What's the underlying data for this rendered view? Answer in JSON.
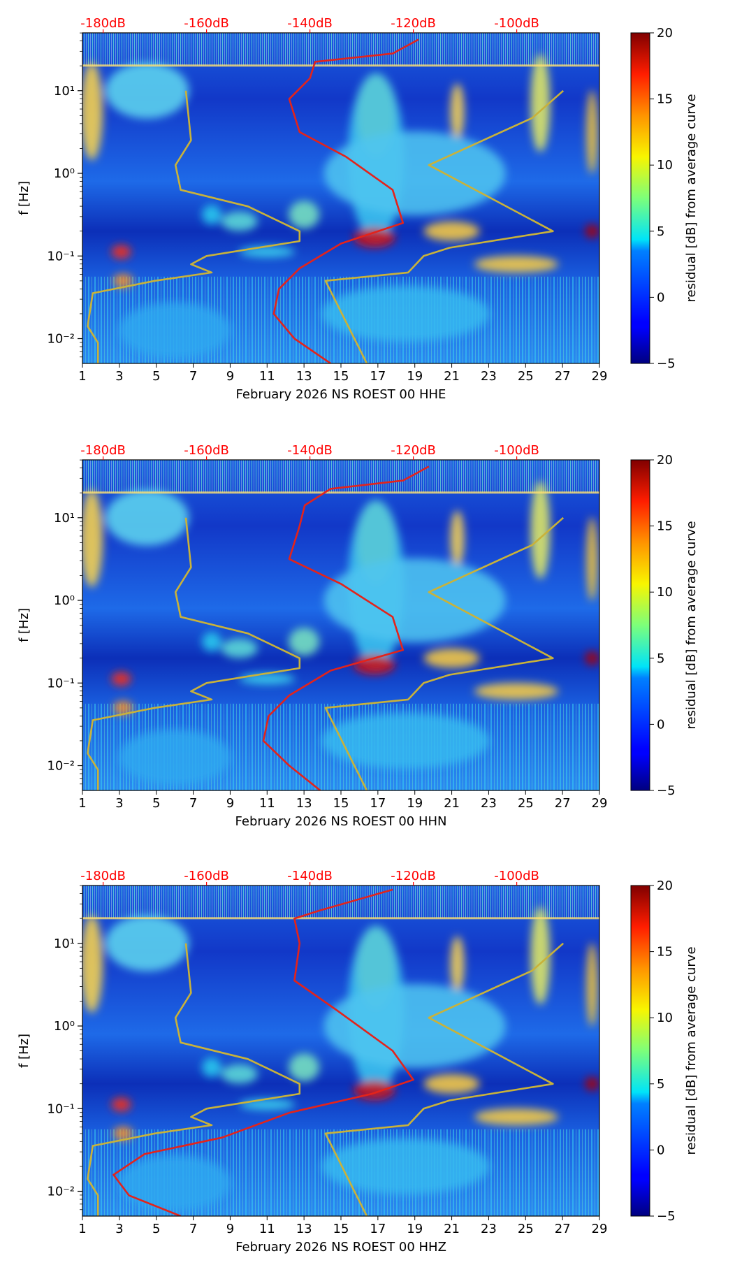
{
  "chart_data": [
    {
      "type": "heatmap",
      "xlabel": "February 2026 NS ROEST 00 HHE",
      "ylabel": "f [Hz]",
      "x_ticks": [
        "1",
        "3",
        "5",
        "7",
        "9",
        "11",
        "13",
        "15",
        "17",
        "19",
        "21",
        "23",
        "25",
        "27",
        "29"
      ],
      "xlim": [
        1,
        29
      ],
      "y_ticks": [
        "10⁻²",
        "10⁻¹",
        "10⁰",
        "10¹"
      ],
      "ylim_log10": [
        -2.3,
        1.7
      ],
      "top_axis_labels": [
        "-180dB",
        "-160dB",
        "-140dB",
        "-120dB",
        "-100dB"
      ],
      "top_axis_db_range": [
        -184,
        -84
      ],
      "colorbar": {
        "label": "residual [dB] from average curve",
        "ticks": [
          "20",
          "15",
          "10",
          "5",
          "0",
          "−5"
        ],
        "range": [
          -5,
          20
        ]
      },
      "average_curve_red": [
        {
          "db": -136,
          "f_log10": -2.3
        },
        {
          "db": -143,
          "f_log10": -2.0
        },
        {
          "db": -147,
          "f_log10": -1.7
        },
        {
          "db": -146,
          "f_log10": -1.4
        },
        {
          "db": -142,
          "f_log10": -1.15
        },
        {
          "db": -134,
          "f_log10": -0.85
        },
        {
          "db": -122,
          "f_log10": -0.6
        },
        {
          "db": -124,
          "f_log10": -0.2
        },
        {
          "db": -133,
          "f_log10": 0.2
        },
        {
          "db": -142,
          "f_log10": 0.5
        },
        {
          "db": -144,
          "f_log10": 0.9
        },
        {
          "db": -140,
          "f_log10": 1.15
        },
        {
          "db": -139,
          "f_log10": 1.35
        },
        {
          "db": -124,
          "f_log10": 1.45
        },
        {
          "db": -119,
          "f_log10": 1.62
        }
      ],
      "model_curve_low": [
        {
          "db": -181,
          "f_log10": -2.3
        },
        {
          "db": -181,
          "f_log10": -2.05
        },
        {
          "db": -183,
          "f_log10": -1.85
        },
        {
          "db": -182,
          "f_log10": -1.45
        },
        {
          "db": -170,
          "f_log10": -1.3
        },
        {
          "db": -159,
          "f_log10": -1.2
        },
        {
          "db": -163,
          "f_log10": -1.1
        },
        {
          "db": -160,
          "f_log10": -1.0
        },
        {
          "db": -142,
          "f_log10": -0.82
        },
        {
          "db": -142,
          "f_log10": -0.7
        },
        {
          "db": -152,
          "f_log10": -0.4
        },
        {
          "db": -165,
          "f_log10": -0.2
        },
        {
          "db": -166,
          "f_log10": 0.1
        },
        {
          "db": -163,
          "f_log10": 0.4
        },
        {
          "db": -164,
          "f_log10": 1.0
        }
      ],
      "model_curve_high": [
        {
          "db": -129,
          "f_log10": -2.3
        },
        {
          "db": -137,
          "f_log10": -1.3
        },
        {
          "db": -121,
          "f_log10": -1.2
        },
        {
          "db": -118,
          "f_log10": -1.0
        },
        {
          "db": -113,
          "f_log10": -0.9
        },
        {
          "db": -93,
          "f_log10": -0.7
        },
        {
          "db": -117,
          "f_log10": 0.1
        },
        {
          "db": -103,
          "f_log10": 0.5
        },
        {
          "db": -97,
          "f_log10": 0.67
        },
        {
          "db": -91,
          "f_log10": 1.0
        }
      ]
    },
    {
      "type": "heatmap",
      "xlabel": "February 2026 NS ROEST 00 HHN",
      "ylabel": "f [Hz]",
      "x_ticks": [
        "1",
        "3",
        "5",
        "7",
        "9",
        "11",
        "13",
        "15",
        "17",
        "19",
        "21",
        "23",
        "25",
        "27",
        "29"
      ],
      "xlim": [
        1,
        29
      ],
      "y_ticks": [
        "10⁻²",
        "10⁻¹",
        "10⁰",
        "10¹"
      ],
      "ylim_log10": [
        -2.3,
        1.7
      ],
      "top_axis_labels": [
        "-180dB",
        "-160dB",
        "-140dB",
        "-120dB",
        "-100dB"
      ],
      "top_axis_db_range": [
        -184,
        -84
      ],
      "colorbar": {
        "label": "residual [dB] from average curve",
        "ticks": [
          "20",
          "15",
          "10",
          "5",
          "0",
          "−5"
        ],
        "range": [
          -5,
          20
        ]
      },
      "average_curve_red": [
        {
          "db": -138,
          "f_log10": -2.3
        },
        {
          "db": -144,
          "f_log10": -2.0
        },
        {
          "db": -149,
          "f_log10": -1.7
        },
        {
          "db": -148,
          "f_log10": -1.4
        },
        {
          "db": -144,
          "f_log10": -1.15
        },
        {
          "db": -136,
          "f_log10": -0.85
        },
        {
          "db": -122,
          "f_log10": -0.6
        },
        {
          "db": -124,
          "f_log10": -0.2
        },
        {
          "db": -134,
          "f_log10": 0.2
        },
        {
          "db": -144,
          "f_log10": 0.5
        },
        {
          "db": -142,
          "f_log10": 0.9
        },
        {
          "db": -141,
          "f_log10": 1.15
        },
        {
          "db": -136,
          "f_log10": 1.35
        },
        {
          "db": -122,
          "f_log10": 1.45
        },
        {
          "db": -117,
          "f_log10": 1.62
        }
      ],
      "model_curve_low": [
        {
          "db": -181,
          "f_log10": -2.3
        },
        {
          "db": -181,
          "f_log10": -2.05
        },
        {
          "db": -183,
          "f_log10": -1.85
        },
        {
          "db": -182,
          "f_log10": -1.45
        },
        {
          "db": -170,
          "f_log10": -1.3
        },
        {
          "db": -159,
          "f_log10": -1.2
        },
        {
          "db": -163,
          "f_log10": -1.1
        },
        {
          "db": -160,
          "f_log10": -1.0
        },
        {
          "db": -142,
          "f_log10": -0.82
        },
        {
          "db": -142,
          "f_log10": -0.7
        },
        {
          "db": -152,
          "f_log10": -0.4
        },
        {
          "db": -165,
          "f_log10": -0.2
        },
        {
          "db": -166,
          "f_log10": 0.1
        },
        {
          "db": -163,
          "f_log10": 0.4
        },
        {
          "db": -164,
          "f_log10": 1.0
        }
      ],
      "model_curve_high": [
        {
          "db": -129,
          "f_log10": -2.3
        },
        {
          "db": -137,
          "f_log10": -1.3
        },
        {
          "db": -121,
          "f_log10": -1.2
        },
        {
          "db": -118,
          "f_log10": -1.0
        },
        {
          "db": -113,
          "f_log10": -0.9
        },
        {
          "db": -93,
          "f_log10": -0.7
        },
        {
          "db": -117,
          "f_log10": 0.1
        },
        {
          "db": -103,
          "f_log10": 0.5
        },
        {
          "db": -97,
          "f_log10": 0.67
        },
        {
          "db": -91,
          "f_log10": 1.0
        }
      ]
    },
    {
      "type": "heatmap",
      "xlabel": "February 2026 NS ROEST 00 HHZ",
      "ylabel": "f [Hz]",
      "x_ticks": [
        "1",
        "3",
        "5",
        "7",
        "9",
        "11",
        "13",
        "15",
        "17",
        "19",
        "21",
        "23",
        "25",
        "27",
        "29"
      ],
      "xlim": [
        1,
        29
      ],
      "y_ticks": [
        "10⁻²",
        "10⁻¹",
        "10⁰",
        "10¹"
      ],
      "ylim_log10": [
        -2.3,
        1.7
      ],
      "top_axis_labels": [
        "-180dB",
        "-160dB",
        "-140dB",
        "-120dB",
        "-100dB"
      ],
      "top_axis_db_range": [
        -184,
        -84
      ],
      "colorbar": {
        "label": "residual [dB] from average curve",
        "ticks": [
          "20",
          "15",
          "10",
          "5",
          "0",
          "−5"
        ],
        "range": [
          -5,
          20
        ]
      },
      "average_curve_red": [
        {
          "db": -165,
          "f_log10": -2.3
        },
        {
          "db": -175,
          "f_log10": -2.05
        },
        {
          "db": -178,
          "f_log10": -1.8
        },
        {
          "db": -172,
          "f_log10": -1.55
        },
        {
          "db": -157,
          "f_log10": -1.35
        },
        {
          "db": -144,
          "f_log10": -1.05
        },
        {
          "db": -128,
          "f_log10": -0.82
        },
        {
          "db": -120,
          "f_log10": -0.65
        },
        {
          "db": -124,
          "f_log10": -0.3
        },
        {
          "db": -135,
          "f_log10": 0.2
        },
        {
          "db": -143,
          "f_log10": 0.55
        },
        {
          "db": -142,
          "f_log10": 1.0
        },
        {
          "db": -143,
          "f_log10": 1.3
        },
        {
          "db": -138,
          "f_log10": 1.4
        },
        {
          "db": -124,
          "f_log10": 1.65
        }
      ],
      "model_curve_low": [
        {
          "db": -181,
          "f_log10": -2.3
        },
        {
          "db": -181,
          "f_log10": -2.05
        },
        {
          "db": -183,
          "f_log10": -1.85
        },
        {
          "db": -182,
          "f_log10": -1.45
        },
        {
          "db": -170,
          "f_log10": -1.3
        },
        {
          "db": -159,
          "f_log10": -1.2
        },
        {
          "db": -163,
          "f_log10": -1.1
        },
        {
          "db": -160,
          "f_log10": -1.0
        },
        {
          "db": -142,
          "f_log10": -0.82
        },
        {
          "db": -142,
          "f_log10": -0.7
        },
        {
          "db": -152,
          "f_log10": -0.4
        },
        {
          "db": -165,
          "f_log10": -0.2
        },
        {
          "db": -166,
          "f_log10": 0.1
        },
        {
          "db": -163,
          "f_log10": 0.4
        },
        {
          "db": -164,
          "f_log10": 1.0
        }
      ],
      "model_curve_high": [
        {
          "db": -129,
          "f_log10": -2.3
        },
        {
          "db": -137,
          "f_log10": -1.3
        },
        {
          "db": -121,
          "f_log10": -1.2
        },
        {
          "db": -118,
          "f_log10": -1.0
        },
        {
          "db": -113,
          "f_log10": -0.9
        },
        {
          "db": -93,
          "f_log10": -0.7
        },
        {
          "db": -117,
          "f_log10": 0.1
        },
        {
          "db": -103,
          "f_log10": 0.5
        },
        {
          "db": -97,
          "f_log10": 0.67
        },
        {
          "db": -91,
          "f_log10": 1.0
        }
      ]
    }
  ],
  "colors": {
    "average_curve": "#e3231b",
    "model_curve": "#c9b23a",
    "top_axis_text": "#ff0000",
    "axis": "#000000"
  }
}
